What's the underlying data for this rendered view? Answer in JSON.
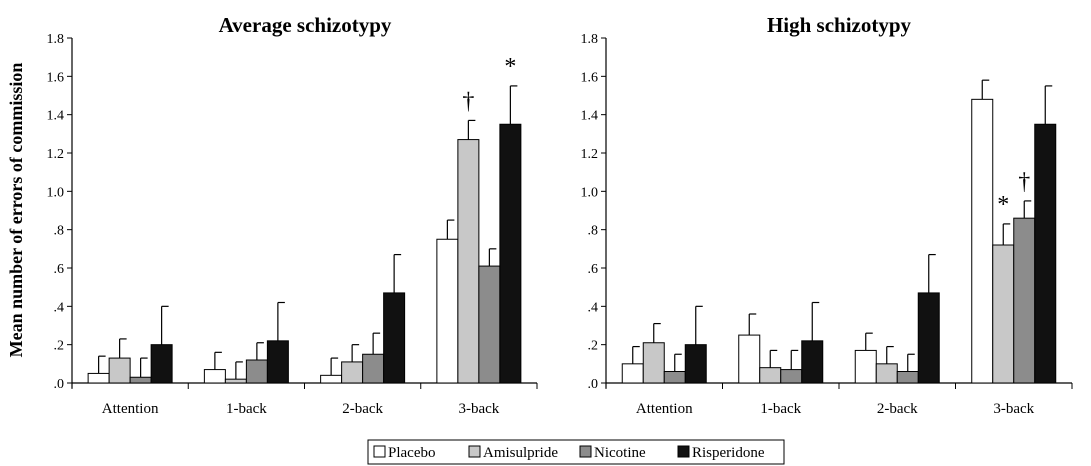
{
  "figure": {
    "ylabel": "Mean number of errors of commission"
  },
  "series_colors": {
    "Placebo": "#ffffff",
    "Amisulpride": "#c8c8c8",
    "Nicotine": "#8c8c8c",
    "Risperidone": "#111111"
  },
  "legend": [
    "Placebo",
    "Amisulpride",
    "Nicotine",
    "Risperidone"
  ],
  "chart_data": [
    {
      "type": "bar",
      "title": "Average schizotypy",
      "ylabel": "Mean number of errors of commission",
      "xlabel": "",
      "ylim": [
        0,
        1.8
      ],
      "yticks": [
        ".0",
        ".2",
        ".4",
        ".6",
        ".8",
        "1.0",
        "1.2",
        "1.4",
        "1.6",
        "1.8"
      ],
      "categories": [
        "Attention",
        "1-back",
        "2-back",
        "3-back"
      ],
      "series": [
        {
          "name": "Placebo",
          "values": [
            0.05,
            0.07,
            0.04,
            0.75
          ],
          "errors": [
            0.09,
            0.09,
            0.09,
            0.1
          ]
        },
        {
          "name": "Amisulpride",
          "values": [
            0.13,
            0.02,
            0.11,
            1.27
          ],
          "errors": [
            0.1,
            0.09,
            0.09,
            0.1
          ]
        },
        {
          "name": "Nicotine",
          "values": [
            0.03,
            0.12,
            0.15,
            0.61
          ],
          "errors": [
            0.1,
            0.09,
            0.11,
            0.09
          ]
        },
        {
          "name": "Risperidone",
          "values": [
            0.2,
            0.22,
            0.47,
            1.35
          ],
          "errors": [
            0.2,
            0.2,
            0.2,
            0.2
          ]
        }
      ],
      "annotations": [
        {
          "text": "†",
          "category": "3-back",
          "series": "Amisulpride"
        },
        {
          "text": "*",
          "category": "3-back",
          "series": "Risperidone"
        }
      ],
      "legend_position": "bottom-center",
      "grid": false
    },
    {
      "type": "bar",
      "title": "High schizotypy",
      "ylabel": "",
      "xlabel": "",
      "ylim": [
        0,
        1.8
      ],
      "yticks": [
        ".0",
        ".2",
        ".4",
        ".6",
        ".8",
        "1.0",
        "1.2",
        "1.4",
        "1.6",
        "1.8"
      ],
      "categories": [
        "Attention",
        "1-back",
        "2-back",
        "3-back"
      ],
      "series": [
        {
          "name": "Placebo",
          "values": [
            0.1,
            0.25,
            0.17,
            1.48
          ],
          "errors": [
            0.09,
            0.11,
            0.09,
            0.1
          ]
        },
        {
          "name": "Amisulpride",
          "values": [
            0.21,
            0.08,
            0.1,
            0.72
          ],
          "errors": [
            0.1,
            0.09,
            0.09,
            0.11
          ]
        },
        {
          "name": "Nicotine",
          "values": [
            0.06,
            0.07,
            0.06,
            0.86
          ],
          "errors": [
            0.09,
            0.1,
            0.09,
            0.09
          ]
        },
        {
          "name": "Risperidone",
          "values": [
            0.2,
            0.22,
            0.47,
            1.35
          ],
          "errors": [
            0.2,
            0.2,
            0.2,
            0.2
          ]
        }
      ],
      "annotations": [
        {
          "text": "*",
          "category": "3-back",
          "series": "Amisulpride"
        },
        {
          "text": "†",
          "category": "3-back",
          "series": "Nicotine"
        }
      ],
      "legend_position": "bottom-center",
      "grid": false
    }
  ]
}
